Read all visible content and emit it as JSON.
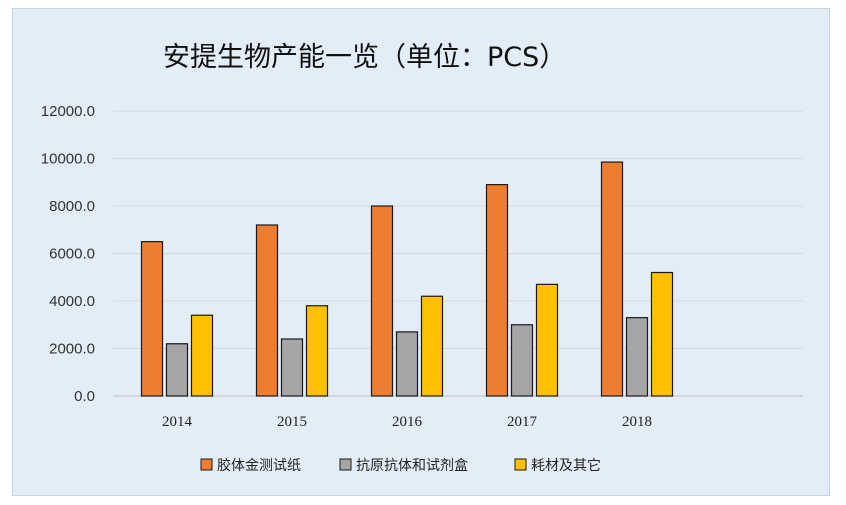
{
  "chart_data": {
    "type": "bar",
    "title": "安提生物产能一览（单位：PCS）",
    "categories": [
      "2014",
      "2015",
      "2016",
      "2017",
      "2018"
    ],
    "series": [
      {
        "name": "胶体金测试纸",
        "values": [
          6500,
          7200,
          8000,
          8900,
          9850
        ],
        "color": "#ed7d31"
      },
      {
        "name": "抗原抗体和试剂盒",
        "values": [
          2200,
          2400,
          2700,
          3000,
          3300
        ],
        "color": "#a5a5a5"
      },
      {
        "name": "耗材及其它",
        "values": [
          3400,
          3800,
          4200,
          4700,
          5200
        ],
        "color": "#ffc000"
      }
    ],
    "yticks": [
      "0.0",
      "2000.0",
      "4000.0",
      "6000.0",
      "8000.0",
      "10000.0",
      "12000.0"
    ],
    "ylim": [
      0,
      12000
    ],
    "grid": true,
    "legend_position": "bottom"
  }
}
